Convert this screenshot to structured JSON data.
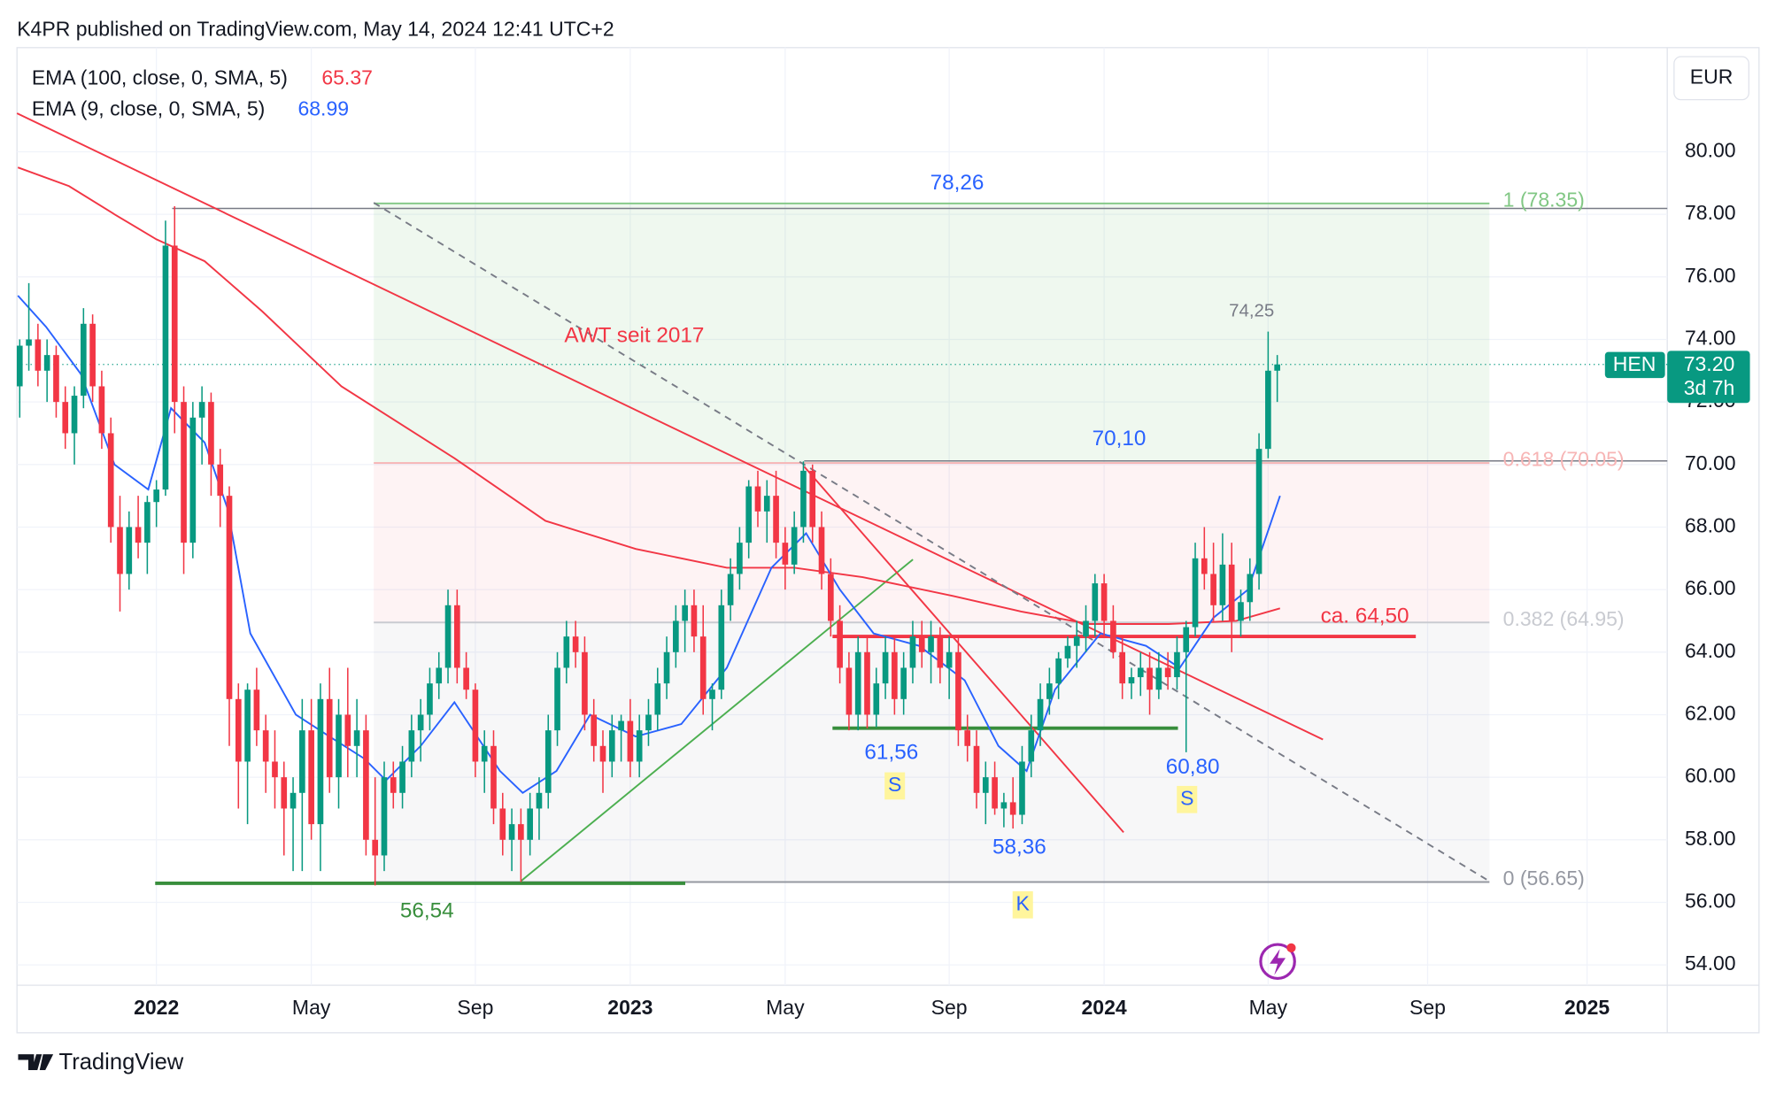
{
  "header": "K4PR published on TradingView.com, May 14, 2024 12:41 UTC+2",
  "footer": "TradingView",
  "chart_data": {
    "type": "candlestick",
    "currency": "EUR",
    "xlim": [
      -15.3,
      165.8
    ],
    "xticks": [
      {
        "value": 0,
        "label": "2022"
      },
      {
        "value": 17,
        "label": "May"
      },
      {
        "value": 35,
        "label": "Sep"
      },
      {
        "value": 52,
        "label": "2023"
      },
      {
        "value": 69,
        "label": "May"
      },
      {
        "value": 87,
        "label": "Sep"
      },
      {
        "value": 104,
        "label": "2024"
      },
      {
        "value": 122,
        "label": "May"
      },
      {
        "value": 139.5,
        "label": "Sep"
      },
      {
        "value": 157,
        "label": "2025"
      }
    ],
    "ylim": [
      53.35,
      83.33
    ],
    "yticks": [
      {
        "value": 54,
        "label": "54.00"
      },
      {
        "value": 56,
        "label": "56.00"
      },
      {
        "value": 58,
        "label": "58.00"
      },
      {
        "value": 60,
        "label": "60.00"
      },
      {
        "value": 62,
        "label": "62.00"
      },
      {
        "value": 64,
        "label": "64.00"
      },
      {
        "value": 66,
        "label": "66.00"
      },
      {
        "value": 68,
        "label": "68.00"
      },
      {
        "value": 70,
        "label": "70.00"
      },
      {
        "value": 72,
        "label": "72.00"
      },
      {
        "value": 74,
        "label": "74.00"
      },
      {
        "value": 76,
        "label": "76.00"
      },
      {
        "value": 78,
        "label": "78.00"
      },
      {
        "value": 80,
        "label": "80.00"
      }
    ],
    "grid": true,
    "up_color": "#089981",
    "down_color": "#f23645",
    "candles": {
      "x": [
        -15,
        -14,
        -13,
        -12,
        -11,
        -10,
        -9,
        -8,
        -7,
        -6,
        -5,
        -4,
        -3,
        -2,
        -1,
        0,
        1,
        2,
        3,
        4,
        5,
        6,
        7,
        8,
        9,
        10,
        11,
        12,
        13,
        14,
        15,
        16,
        17,
        18,
        19,
        20,
        21,
        22,
        23,
        24,
        25,
        26,
        27,
        28,
        29,
        30,
        31,
        32,
        33,
        34,
        35,
        36,
        37,
        38,
        39,
        40,
        41,
        42,
        43,
        44,
        45,
        46,
        47,
        48,
        49,
        50,
        51,
        52,
        53,
        54,
        55,
        56,
        57,
        58,
        59,
        60,
        61,
        62,
        63,
        64,
        65,
        66,
        67,
        68,
        69,
        70,
        71,
        72,
        73,
        74,
        75,
        76,
        77,
        78,
        79,
        80,
        81,
        82,
        83,
        84,
        85,
        86,
        87,
        88,
        89,
        90,
        91,
        92,
        93,
        94,
        95,
        96,
        97,
        98,
        99,
        100,
        101,
        102,
        103,
        104,
        105,
        106,
        107,
        108,
        109,
        110,
        111,
        112,
        113,
        114,
        115,
        116,
        117,
        118,
        119,
        120,
        121,
        122,
        123
      ],
      "open": [
        72.5,
        73.8,
        74,
        73,
        73.5,
        72,
        71,
        72.2,
        74.5,
        72.5,
        71,
        68,
        66.5,
        68,
        67.5,
        68.8,
        69.2,
        77,
        72,
        67.5,
        71.5,
        72,
        70,
        69,
        62.5,
        60.5,
        62.8,
        61.5,
        60.5,
        60,
        59,
        59.5,
        61.5,
        58.5,
        62.5,
        60,
        62,
        61,
        61.5,
        58,
        57.5,
        60,
        59.5,
        60.5,
        61.5,
        62,
        63,
        63.5,
        65.5,
        63.5,
        62.8,
        60.5,
        61,
        59,
        58,
        58.5,
        58,
        59,
        59.5,
        61.5,
        63.5,
        64.5,
        64,
        62,
        61,
        60.5,
        61.5,
        61.8,
        60.5,
        61.5,
        62,
        63,
        64,
        65,
        65.5,
        64.5,
        62.5,
        62.8,
        65.5,
        66.5,
        67.5,
        69.3,
        68.5,
        69,
        67.5,
        66.8,
        68,
        69.8,
        68,
        66.5,
        65,
        63.5,
        62,
        64,
        62,
        63,
        64,
        62.5,
        63.5,
        64.5,
        64,
        64.5,
        63.5,
        64,
        61.5,
        61,
        59.5,
        60,
        59,
        59.2,
        58.8,
        60.5,
        61.5,
        62.5,
        63,
        63.8,
        64.2,
        64.5,
        65,
        66.2,
        65,
        64,
        63,
        63.2,
        63.5,
        62.8,
        63.5,
        63.2,
        64,
        64.8,
        67,
        66.5,
        65.5,
        66.8,
        65,
        65.6,
        66.5,
        70.5,
        73
      ],
      "high": [
        74,
        75.8,
        74.5,
        74,
        73.8,
        72.5,
        72.5,
        75,
        74.8,
        73,
        71.5,
        69,
        68.5,
        69,
        69,
        69.5,
        77.8,
        78.26,
        72.5,
        72,
        72.5,
        72.3,
        70.5,
        69.3,
        63,
        63,
        63.5,
        62,
        61.5,
        60.5,
        60,
        62.5,
        62.5,
        63,
        63.5,
        62.5,
        63.5,
        62.5,
        62,
        60,
        60.5,
        60.5,
        61,
        62,
        62.5,
        63.5,
        64,
        66,
        66,
        64,
        63,
        61.5,
        61.5,
        59.5,
        59,
        59,
        59.5,
        60,
        62,
        64,
        65,
        65,
        64.5,
        62.5,
        61.5,
        62,
        62,
        62.5,
        62,
        62.5,
        63.5,
        64.5,
        65.5,
        66,
        66,
        65.5,
        63,
        66,
        67,
        68,
        69.5,
        69.8,
        69.5,
        69.8,
        68,
        68.5,
        70.1,
        70,
        68.5,
        67,
        65.5,
        64,
        64.5,
        64.5,
        63.5,
        64.5,
        64.5,
        64,
        65,
        65,
        65,
        64.8,
        64.5,
        64.5,
        62,
        61.5,
        60.5,
        60.5,
        59.5,
        60,
        61,
        62,
        63,
        63.5,
        64,
        64.5,
        65,
        65.5,
        66.5,
        66.5,
        65.5,
        64.5,
        63.5,
        64,
        64,
        64,
        64,
        64.5,
        65,
        67.5,
        68,
        67.5,
        67.8,
        67.5,
        66,
        67,
        71,
        74.25,
        73.5
      ],
      "low": [
        71.5,
        73,
        72.5,
        72,
        71.5,
        70.5,
        70,
        71.8,
        72,
        70.5,
        67.5,
        65.3,
        66,
        67,
        66.5,
        68,
        69,
        71,
        66.5,
        67,
        70,
        69,
        68,
        61,
        59,
        58.5,
        61,
        59.5,
        59,
        57.5,
        57,
        57,
        58,
        57,
        59.5,
        59,
        60,
        60,
        57.5,
        56.54,
        57,
        59,
        59,
        60,
        60.5,
        61.5,
        62.5,
        63,
        63,
        62.5,
        60,
        59.5,
        58.5,
        57.5,
        57,
        56.65,
        57.5,
        58,
        59,
        61,
        63,
        63.5,
        61.5,
        60.5,
        59.5,
        60,
        60.5,
        60,
        60,
        61,
        61.5,
        62.5,
        63.5,
        64,
        64,
        62,
        61.5,
        62.5,
        65,
        66,
        67,
        68,
        67.5,
        67,
        66,
        66.5,
        67.5,
        67.5,
        66,
        64.5,
        63,
        61.5,
        61.5,
        61.56,
        61.6,
        62.5,
        62,
        62,
        63,
        63.5,
        63,
        63,
        62.5,
        61,
        60.5,
        59,
        58.5,
        58.8,
        58.4,
        58.36,
        58.5,
        60,
        61,
        62,
        62.5,
        63.5,
        63.5,
        64,
        64.5,
        64.5,
        63.8,
        62.5,
        62.5,
        62.6,
        62,
        62.5,
        62.8,
        62.8,
        60.8,
        64.5,
        66,
        65,
        65,
        64,
        64.5,
        65,
        66,
        70.2,
        72
      ],
      "close": [
        73.8,
        74,
        73,
        73.5,
        72,
        71,
        72.2,
        74.5,
        72.5,
        71,
        68,
        66.5,
        68,
        67.5,
        68.8,
        69.2,
        77,
        72,
        67.5,
        71.5,
        72,
        70,
        69,
        62.5,
        60.5,
        62.8,
        61.5,
        60.5,
        60,
        59,
        59.5,
        61.5,
        58.5,
        62.5,
        60,
        62,
        61,
        61.5,
        58,
        57.5,
        60,
        59.5,
        60.5,
        61.5,
        62,
        63,
        63.5,
        65.5,
        63.5,
        62.8,
        60.5,
        61,
        59,
        58,
        58.5,
        58,
        59,
        59.5,
        61.5,
        63.5,
        64.5,
        64,
        62,
        61,
        60.5,
        61.5,
        61.8,
        60.5,
        61.5,
        62,
        63,
        64,
        65,
        65.5,
        64.5,
        62.5,
        62.8,
        65.5,
        66.5,
        67.5,
        69.3,
        68.5,
        69,
        67.5,
        66.8,
        68,
        69.8,
        68,
        66.5,
        65,
        63.5,
        62,
        64,
        62,
        63,
        64,
        62.5,
        63.5,
        64.5,
        64,
        64.5,
        63.5,
        64,
        61.5,
        61,
        59.5,
        60,
        59,
        59.2,
        58.8,
        60.5,
        61.5,
        62.5,
        63,
        63.8,
        64.2,
        64.5,
        65,
        66.2,
        65,
        64,
        63,
        63.2,
        63.5,
        62.8,
        63.5,
        63.2,
        64,
        64.8,
        67,
        66.5,
        65.5,
        66.8,
        65,
        65.6,
        66.5,
        70.5,
        73,
        73.2
      ]
    },
    "series": [
      {
        "name": "EMA (100, close, 0, SMA, 5)",
        "last": 65.37,
        "color": "#f23645",
        "x": [
          -15.2,
          -9.6,
          -4.6,
          0,
          5.3,
          11.6,
          20.3,
          32.7,
          42.7,
          52.6,
          62.6,
          70.0,
          77.5,
          87.4,
          94.9,
          102.4,
          111.1,
          118.5,
          123.3
        ],
        "values": [
          79.5,
          78.9,
          78.0,
          77.2,
          76.5,
          74.9,
          72.5,
          70.2,
          68.2,
          67.3,
          66.7,
          66.7,
          66.4,
          65.8,
          65.3,
          64.9,
          64.9,
          65.0,
          65.4
        ]
      },
      {
        "name": "EMA (9, close, 0, SMA, 5)",
        "last": 68.99,
        "color": "#2962ff",
        "x": [
          -15.2,
          -12.1,
          -8.3,
          -4.6,
          -0.9,
          1.6,
          5.3,
          7.8,
          10.3,
          15.3,
          19.0,
          22.8,
          25.2,
          29.0,
          32.7,
          37.7,
          40.2,
          43.9,
          47.6,
          52.6,
          57.6,
          62.6,
          67.5,
          71.3,
          75.0,
          78.7,
          83.7,
          88.7,
          92.4,
          95.5,
          98.6,
          103.6,
          108.6,
          112.3,
          116.0,
          119.8,
          123.3
        ],
        "values": [
          75.4,
          74.4,
          72.9,
          70.0,
          69.2,
          71.8,
          70.7,
          68.6,
          64.6,
          62.0,
          61.3,
          60.6,
          59.9,
          61.0,
          62.4,
          60.2,
          59.5,
          60.2,
          62.0,
          61.3,
          61.7,
          63.5,
          66.7,
          67.8,
          66.0,
          64.6,
          64.2,
          63.1,
          61.0,
          60.2,
          62.8,
          64.6,
          64.2,
          63.5,
          65.1,
          66.0,
          69.0
        ]
      }
    ],
    "fib_levels": [
      {
        "value": 78.35,
        "label": "1 (78.35)",
        "color": "#81c784"
      },
      {
        "value": 70.05,
        "label": "0.618 (70.05)",
        "color": "#f7b5b5"
      },
      {
        "value": 64.95,
        "label": "0.382 (64.95)",
        "color": "#c9cbd1"
      },
      {
        "value": 56.65,
        "label": "0 (56.65)",
        "color": "#9598a1"
      }
    ],
    "annotations": [
      "78,26",
      "74,25",
      "AWT seit 2017",
      "70,10",
      "ca. 64,50",
      "61,56",
      "S",
      "60,80",
      "S",
      "58,36",
      "56,54",
      "K"
    ],
    "price_tag": {
      "symbol": "HEN",
      "value": 73.2,
      "label": "73.20",
      "countdown": "3d 7h"
    }
  }
}
